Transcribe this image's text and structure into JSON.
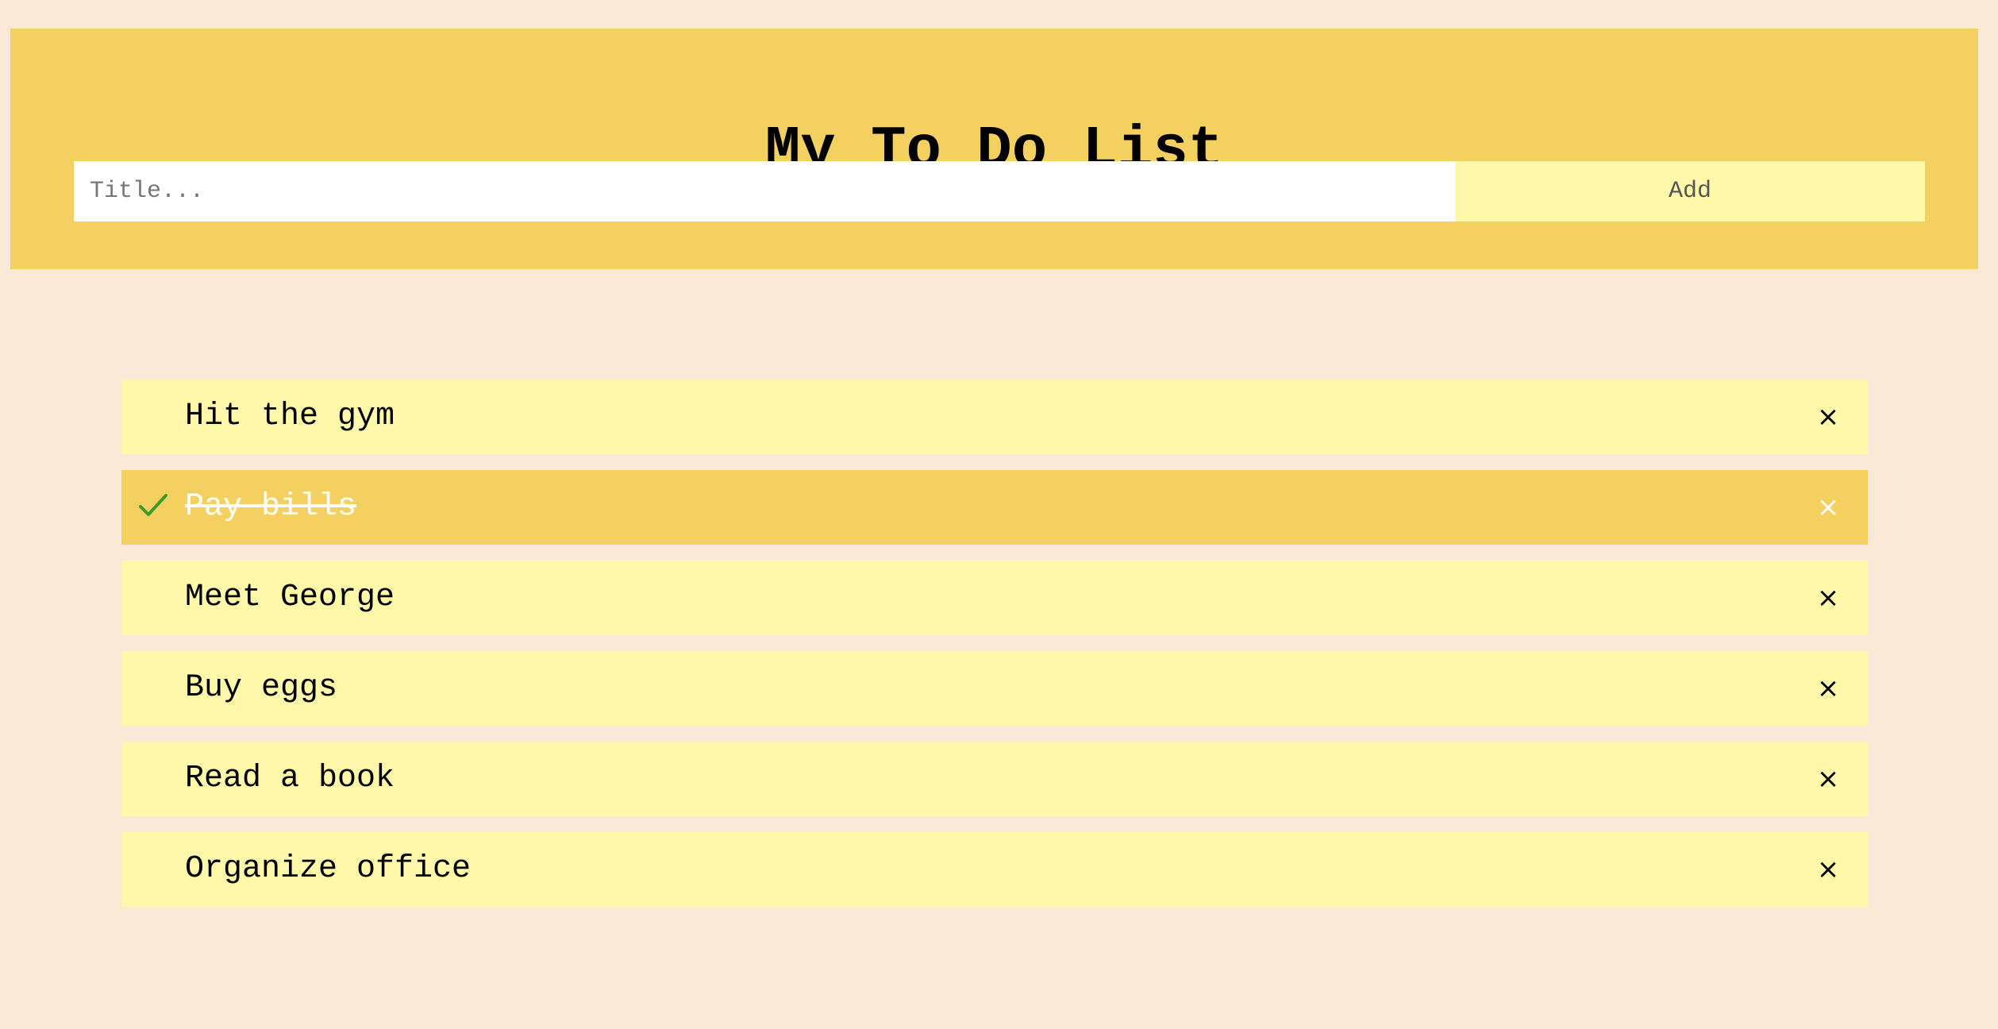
{
  "header": {
    "title": "My To Do List",
    "input_placeholder": "Title...",
    "add_label": "Add"
  },
  "todos": [
    {
      "text": "Hit the gym",
      "checked": false,
      "close": "×"
    },
    {
      "text": "Pay bills",
      "checked": true,
      "close": "×"
    },
    {
      "text": "Meet George",
      "checked": false,
      "close": "×"
    },
    {
      "text": "Buy eggs",
      "checked": false,
      "close": "×"
    },
    {
      "text": "Read a book",
      "checked": false,
      "close": "×"
    },
    {
      "text": "Organize office",
      "checked": false,
      "close": "×"
    }
  ],
  "icons": {
    "check": "check-icon",
    "close": "close-icon"
  },
  "colors": {
    "background": "#f9e9d6",
    "header": "#f4d061",
    "item": "#fff8a8",
    "item_checked": "#f4d061",
    "check": "#3a9a2a"
  }
}
